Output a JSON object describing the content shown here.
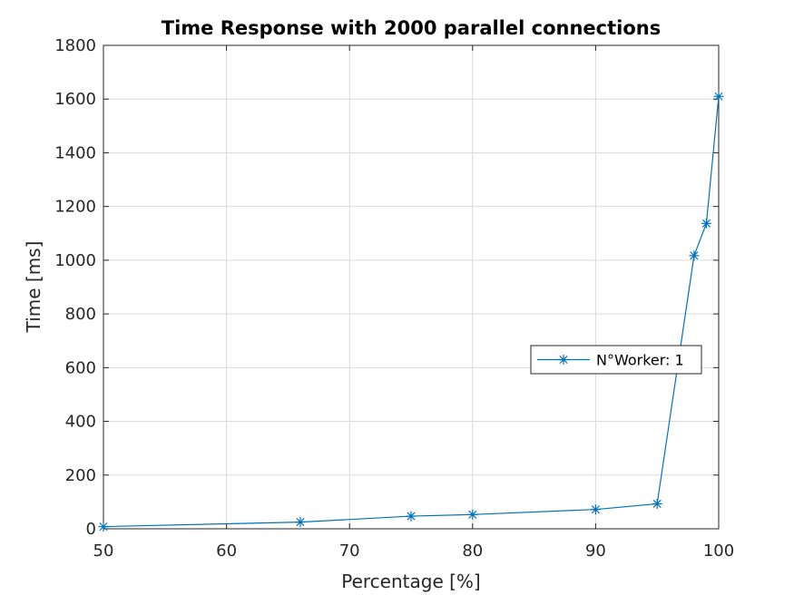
{
  "chart_data": {
    "type": "line",
    "title": "Time Response with 2000 parallel connections",
    "xlabel": "Percentage [%]",
    "ylabel": "Time [ms]",
    "xlim": [
      50,
      100
    ],
    "ylim": [
      0,
      1800
    ],
    "xticks": [
      50,
      60,
      70,
      80,
      90,
      100
    ],
    "yticks": [
      0,
      200,
      400,
      600,
      800,
      1000,
      1200,
      1400,
      1600,
      1800
    ],
    "grid": true,
    "legend_position": "middle-right",
    "marker": "asterisk",
    "series": [
      {
        "name": "N°Worker: 1",
        "color": "#0072bd",
        "x": [
          50,
          66,
          75,
          80,
          90,
          95,
          98,
          99,
          100
        ],
        "y": [
          8,
          25,
          47,
          53,
          72,
          93,
          1017,
          1137,
          1610
        ]
      }
    ]
  }
}
